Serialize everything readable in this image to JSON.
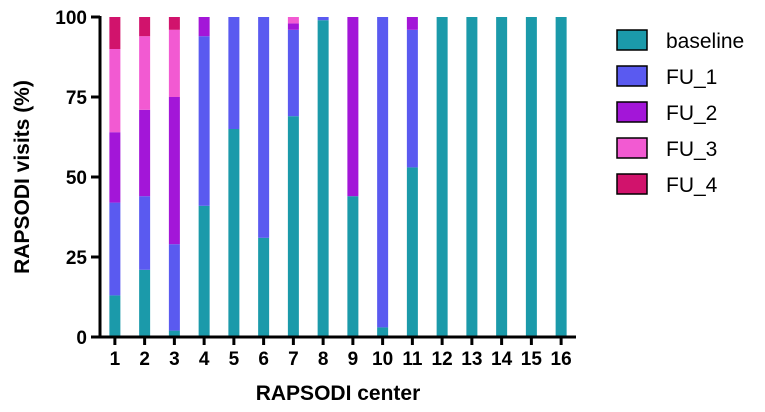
{
  "chart_data": {
    "type": "bar",
    "stacked": true,
    "xlabel": "RAPSODI center",
    "ylabel": "RAPSODI visits (%)",
    "ylim": [
      0,
      100
    ],
    "yticks": [
      0,
      25,
      50,
      75,
      100
    ],
    "grid": false,
    "legend_position": "right",
    "categories": [
      "1",
      "2",
      "3",
      "4",
      "5",
      "6",
      "7",
      "8",
      "9",
      "10",
      "11",
      "12",
      "13",
      "14",
      "15",
      "16"
    ],
    "series": [
      {
        "name": "baseline",
        "color": "#1b9aaa",
        "values": [
          13,
          21,
          2,
          41,
          65,
          31,
          69,
          99,
          44,
          3,
          53,
          100,
          100,
          100,
          100,
          100
        ]
      },
      {
        "name": "FU_1",
        "color": "#5a5af0",
        "values": [
          29,
          23,
          27,
          53,
          35,
          69,
          27,
          1,
          0,
          97,
          43,
          0,
          0,
          0,
          0,
          0
        ]
      },
      {
        "name": "FU_2",
        "color": "#a316d8",
        "values": [
          22,
          27,
          46,
          6,
          0,
          0,
          2,
          0,
          56,
          0,
          4,
          0,
          0,
          0,
          0,
          0
        ]
      },
      {
        "name": "FU_3",
        "color": "#f25ad2",
        "values": [
          26,
          23,
          21,
          0,
          0,
          0,
          2,
          0,
          0,
          0,
          0,
          0,
          0,
          0,
          0,
          0
        ]
      },
      {
        "name": "FU_4",
        "color": "#d1136c",
        "values": [
          10,
          6,
          4,
          0,
          0,
          0,
          0,
          0,
          0,
          0,
          0,
          0,
          0,
          0,
          0,
          0
        ]
      }
    ]
  }
}
